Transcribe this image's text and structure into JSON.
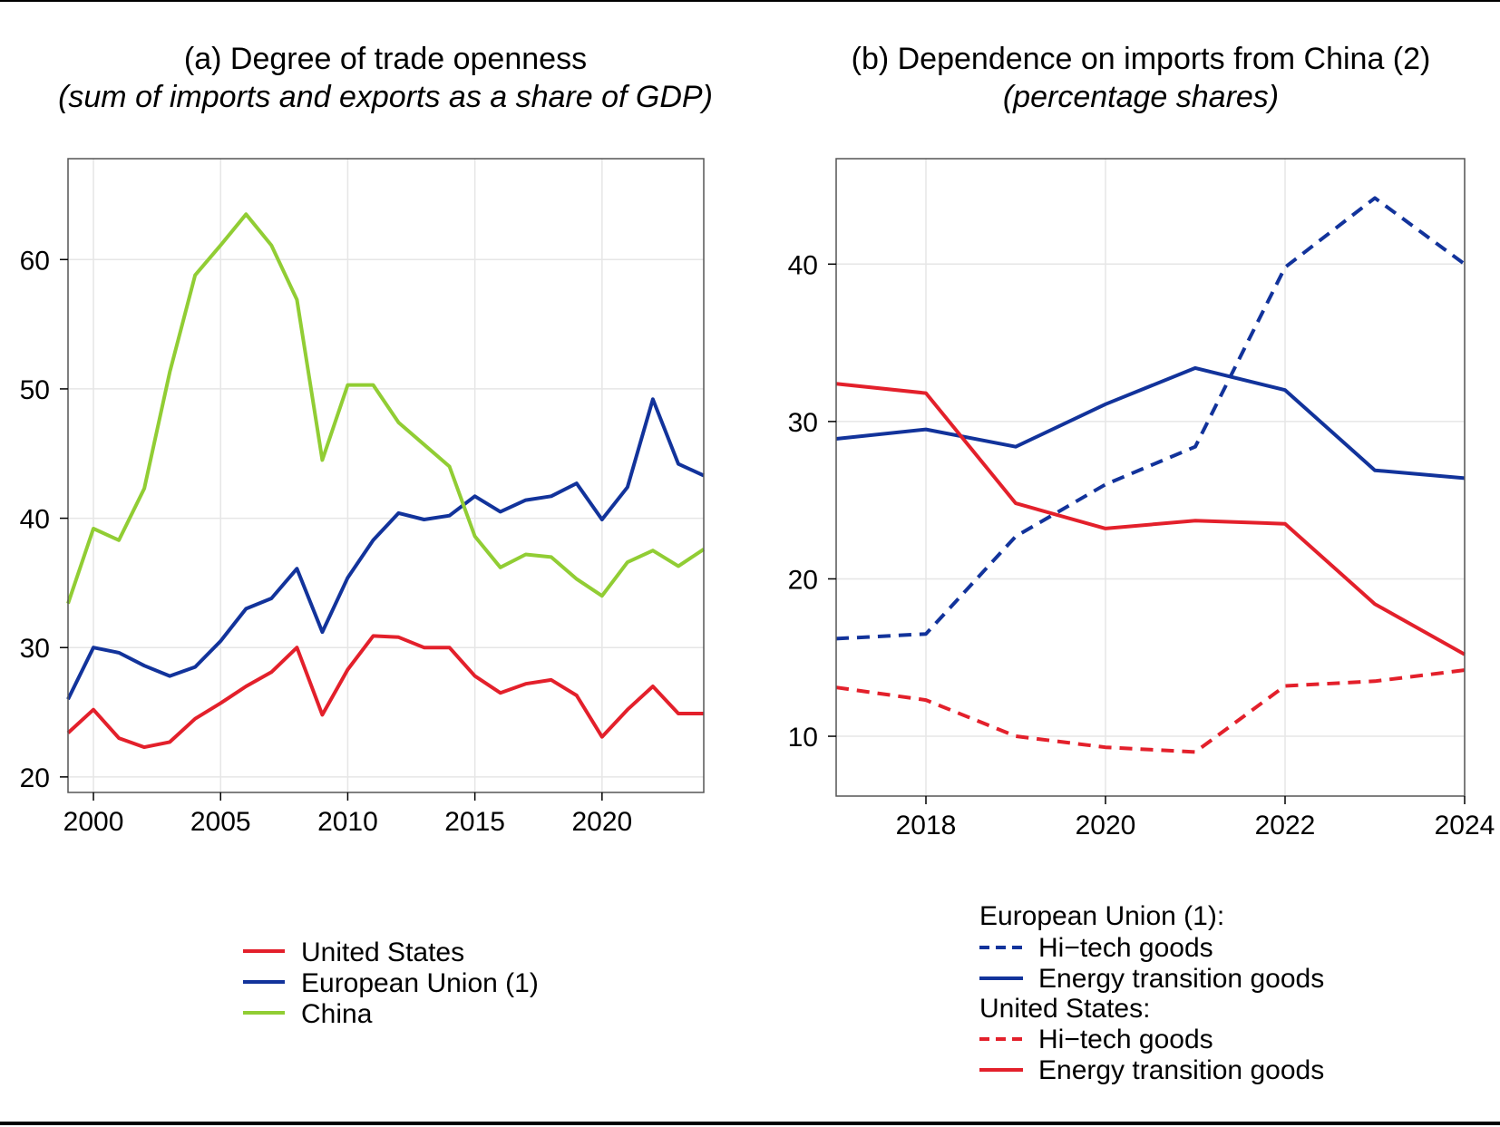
{
  "chart_data": [
    {
      "type": "line",
      "title": "(a) Degree of trade openness",
      "subtitle": "(sum of imports and exports as a share of GDP)",
      "x": [
        1999,
        2000,
        2001,
        2002,
        2003,
        2004,
        2005,
        2006,
        2007,
        2008,
        2009,
        2010,
        2011,
        2012,
        2013,
        2014,
        2015,
        2016,
        2017,
        2018,
        2019,
        2020,
        2021,
        2022,
        2023,
        2024
      ],
      "xlim": [
        1999,
        2024
      ],
      "ylim": [
        18.8,
        67.8
      ],
      "xticks": [
        "2000",
        "2005",
        "2010",
        "2015",
        "2020"
      ],
      "yticks": [
        "20",
        "30",
        "40",
        "50",
        "60"
      ],
      "grid": true,
      "legend_position": "bottom",
      "series": [
        {
          "name": "United States",
          "color": "#e3202b",
          "dash": false,
          "values": [
            23.4,
            25.2,
            23.0,
            22.3,
            22.7,
            24.5,
            25.7,
            27.0,
            28.1,
            30.0,
            24.8,
            28.3,
            30.9,
            30.8,
            30.0,
            30.0,
            27.8,
            26.5,
            27.2,
            27.5,
            26.3,
            23.1,
            25.2,
            27.0,
            24.9,
            24.9
          ]
        },
        {
          "name": "European Union (1)",
          "color": "#12339b",
          "dash": false,
          "values": [
            26.0,
            30.0,
            29.6,
            28.6,
            27.8,
            28.5,
            30.5,
            33.0,
            33.8,
            36.1,
            31.2,
            35.4,
            38.3,
            40.4,
            39.9,
            40.2,
            41.7,
            40.5,
            41.4,
            41.7,
            42.7,
            39.9,
            42.4,
            49.2,
            44.2,
            43.3
          ]
        },
        {
          "name": "China",
          "color": "#91cd34",
          "dash": false,
          "values": [
            33.4,
            39.2,
            38.3,
            42.3,
            51.3,
            58.8,
            61.1,
            63.5,
            61.1,
            56.9,
            44.5,
            50.3,
            50.3,
            47.4,
            45.7,
            44.0,
            38.6,
            36.2,
            37.2,
            37.0,
            35.3,
            34.0,
            36.6,
            37.5,
            36.3,
            37.6
          ]
        }
      ]
    },
    {
      "type": "line",
      "title": "(b) Dependence on imports from China (2)",
      "subtitle": "(percentage shares)",
      "x": [
        2017,
        2018,
        2019,
        2020,
        2021,
        2022,
        2023,
        2024
      ],
      "xlim": [
        2017,
        2024
      ],
      "ylim": [
        6.2,
        46.7
      ],
      "xticks": [
        "2018",
        "2020",
        "2022",
        "2024"
      ],
      "yticks": [
        "10",
        "20",
        "30",
        "40"
      ],
      "grid": true,
      "legend_position": "bottom",
      "legend_groups": [
        "European Union (1):",
        "United States:"
      ],
      "series": [
        {
          "group": "European Union (1):",
          "name": "Hi−tech goods",
          "color": "#12339b",
          "dash": true,
          "values": [
            16.2,
            16.5,
            22.7,
            26.0,
            28.4,
            39.8,
            44.2,
            40.0
          ]
        },
        {
          "group": "European Union (1):",
          "name": "Energy transition goods",
          "color": "#12339b",
          "dash": false,
          "values": [
            28.9,
            29.5,
            28.4,
            31.1,
            33.4,
            32.0,
            26.9,
            26.4
          ]
        },
        {
          "group": "United States:",
          "name": "Hi−tech goods",
          "color": "#e3202b",
          "dash": true,
          "values": [
            13.1,
            12.3,
            10.0,
            9.3,
            9.0,
            13.2,
            13.5,
            14.2
          ]
        },
        {
          "group": "United States:",
          "name": "Energy transition goods",
          "color": "#e3202b",
          "dash": false,
          "values": [
            32.4,
            31.8,
            24.8,
            23.2,
            23.7,
            23.5,
            18.4,
            15.2
          ]
        }
      ]
    }
  ]
}
